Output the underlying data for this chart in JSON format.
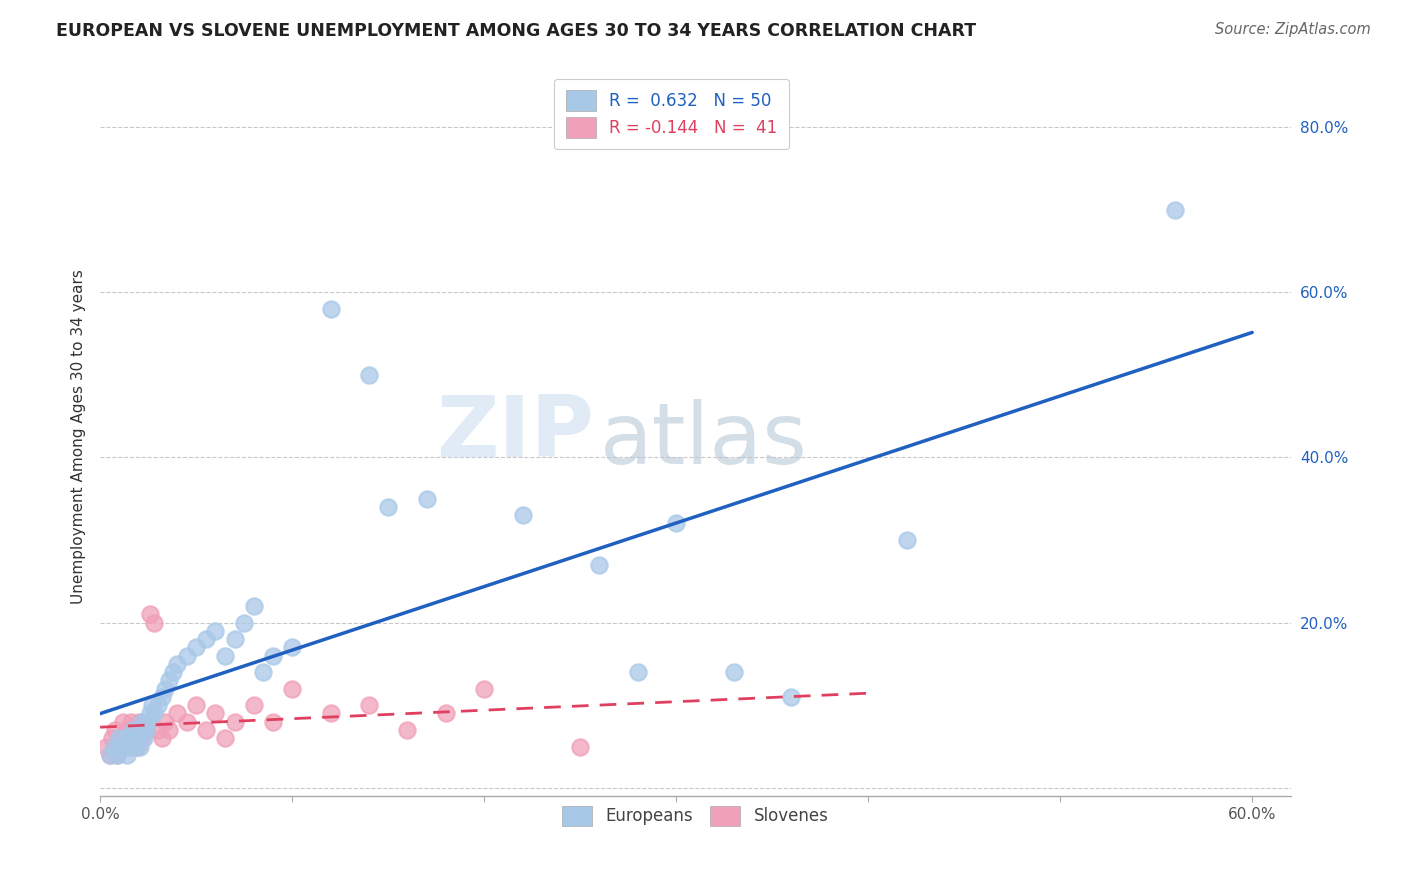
{
  "title": "EUROPEAN VS SLOVENE UNEMPLOYMENT AMONG AGES 30 TO 34 YEARS CORRELATION CHART",
  "source": "Source: ZipAtlas.com",
  "ylabel": "Unemployment Among Ages 30 to 34 years",
  "xlim": [
    0.0,
    0.62
  ],
  "ylim": [
    -0.01,
    0.86
  ],
  "xticks": [
    0.0,
    0.1,
    0.2,
    0.3,
    0.4,
    0.5,
    0.6
  ],
  "yticks": [
    0.0,
    0.2,
    0.4,
    0.6,
    0.8
  ],
  "xticklabels": [
    "0.0%",
    "",
    "",
    "",
    "",
    "",
    "60.0%"
  ],
  "yticklabels": [
    "",
    "20.0%",
    "40.0%",
    "60.0%",
    "80.0%"
  ],
  "legend_r_european": "0.632",
  "legend_n_european": "50",
  "legend_r_slovene": "-0.144",
  "legend_n_slovene": "41",
  "european_color": "#a8c8e8",
  "slovene_color": "#f0a0b8",
  "trendline_european_color": "#2060c0",
  "trendline_slovene_color": "#e04060",
  "background_color": "#ffffff",
  "grid_color": "#bbbbbb",
  "watermark_zip": "ZIP",
  "watermark_atlas": "atlas",
  "european_x": [
    0.005,
    0.007,
    0.009,
    0.01,
    0.012,
    0.013,
    0.014,
    0.015,
    0.016,
    0.017,
    0.018,
    0.019,
    0.02,
    0.021,
    0.022,
    0.023,
    0.024,
    0.025,
    0.026,
    0.027,
    0.028,
    0.03,
    0.032,
    0.034,
    0.036,
    0.038,
    0.04,
    0.045,
    0.05,
    0.055,
    0.06,
    0.065,
    0.07,
    0.075,
    0.08,
    0.085,
    0.09,
    0.1,
    0.12,
    0.14,
    0.15,
    0.17,
    0.22,
    0.26,
    0.28,
    0.3,
    0.33,
    0.36,
    0.42,
    0.56
  ],
  "european_y": [
    0.04,
    0.05,
    0.04,
    0.06,
    0.05,
    0.06,
    0.04,
    0.05,
    0.06,
    0.07,
    0.05,
    0.06,
    0.07,
    0.05,
    0.08,
    0.06,
    0.07,
    0.08,
    0.09,
    0.1,
    0.09,
    0.1,
    0.11,
    0.12,
    0.13,
    0.14,
    0.15,
    0.16,
    0.17,
    0.18,
    0.19,
    0.16,
    0.18,
    0.2,
    0.22,
    0.14,
    0.16,
    0.17,
    0.58,
    0.5,
    0.34,
    0.35,
    0.33,
    0.27,
    0.14,
    0.32,
    0.14,
    0.11,
    0.3,
    0.7
  ],
  "slovene_x": [
    0.003,
    0.005,
    0.006,
    0.007,
    0.008,
    0.009,
    0.01,
    0.011,
    0.012,
    0.013,
    0.014,
    0.015,
    0.016,
    0.017,
    0.018,
    0.019,
    0.02,
    0.022,
    0.024,
    0.026,
    0.028,
    0.03,
    0.032,
    0.034,
    0.036,
    0.04,
    0.045,
    0.05,
    0.055,
    0.06,
    0.065,
    0.07,
    0.08,
    0.09,
    0.1,
    0.12,
    0.14,
    0.16,
    0.18,
    0.2,
    0.25
  ],
  "slovene_y": [
    0.05,
    0.04,
    0.06,
    0.05,
    0.07,
    0.04,
    0.06,
    0.05,
    0.08,
    0.06,
    0.07,
    0.05,
    0.08,
    0.06,
    0.07,
    0.05,
    0.08,
    0.06,
    0.07,
    0.21,
    0.2,
    0.07,
    0.06,
    0.08,
    0.07,
    0.09,
    0.08,
    0.1,
    0.07,
    0.09,
    0.06,
    0.08,
    0.1,
    0.08,
    0.12,
    0.09,
    0.1,
    0.07,
    0.09,
    0.12,
    0.05
  ],
  "title_fontsize": 12.5,
  "axis_label_fontsize": 11,
  "tick_fontsize": 11,
  "legend_fontsize": 12,
  "source_fontsize": 10.5
}
